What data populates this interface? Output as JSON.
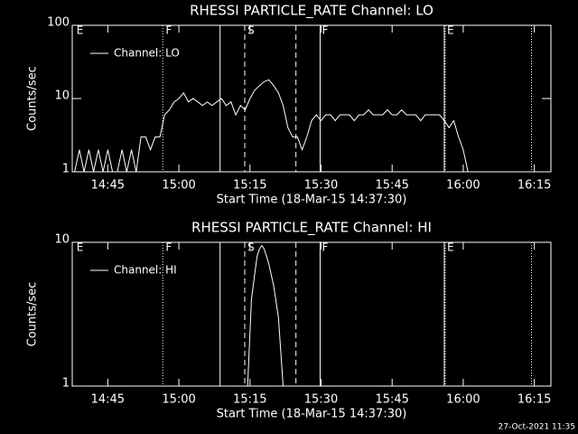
{
  "chart_data": [
    {
      "type": "line",
      "title": "RHESSI PARTICLE_RATE Channel: LO",
      "x_label": "Start Time (18-Mar-15 14:37:30)",
      "y_label": "Counts/sec",
      "log_y": true,
      "legend": "upper left",
      "xlim": [
        877.5,
        978.5
      ],
      "ylim": [
        1,
        100
      ],
      "xticks": [
        {
          "value": 885,
          "label": "14:45"
        },
        {
          "value": 900,
          "label": "15:00"
        },
        {
          "value": 915,
          "label": "15:15"
        },
        {
          "value": 930,
          "label": "15:30"
        },
        {
          "value": 945,
          "label": "15:45"
        },
        {
          "value": 960,
          "label": "16:00"
        },
        {
          "value": 975,
          "label": "16:15"
        }
      ],
      "yticks": [
        1,
        10,
        100
      ],
      "event_lines": [
        {
          "x": 896.6,
          "style": "dotted"
        },
        {
          "x": 908.7,
          "style": "solid"
        },
        {
          "x": 913.9,
          "style": "dashed"
        },
        {
          "x": 924.7,
          "style": "dashed"
        },
        {
          "x": 929.8,
          "style": "solid"
        },
        {
          "x": 956.0,
          "style": "solid"
        },
        {
          "x": 956.2,
          "style": "dotted"
        },
        {
          "x": 974.4,
          "style": "dotted"
        }
      ],
      "annotations": [
        {
          "x": 878.4,
          "label": "E"
        },
        {
          "x": 897.2,
          "label": "F"
        },
        {
          "x": 914.5,
          "label": "S"
        },
        {
          "x": 930.2,
          "label": "F"
        },
        {
          "x": 956.6,
          "label": "E"
        }
      ],
      "x": [
        878,
        879,
        880,
        881,
        882,
        883,
        884,
        885,
        886,
        887,
        888,
        889,
        890,
        891,
        892,
        893,
        894,
        895,
        896,
        897,
        898,
        899,
        900,
        901,
        902,
        903,
        904,
        905,
        906,
        907,
        908,
        909,
        910,
        911,
        912,
        913,
        914,
        915,
        916,
        917,
        918,
        919,
        920,
        921,
        922,
        923,
        924,
        925,
        926,
        927,
        928,
        929,
        930,
        931,
        932,
        933,
        934,
        935,
        936,
        937,
        938,
        939,
        940,
        941,
        942,
        943,
        944,
        945,
        946,
        947,
        948,
        949,
        950,
        951,
        952,
        953,
        954,
        955,
        956,
        957,
        958,
        959,
        960,
        961,
        962,
        963,
        964,
        965,
        966,
        967,
        968,
        969,
        970,
        971,
        972,
        973,
        974,
        975,
        976,
        977,
        978
      ],
      "series": [
        {
          "name": "Channel: LO",
          "color": "#ffffff",
          "values": [
            1,
            2,
            1,
            2,
            1,
            2,
            1,
            2,
            1,
            1,
            2,
            1,
            2,
            1,
            3,
            3,
            2,
            3,
            3,
            6,
            7,
            9,
            10,
            12,
            9,
            10,
            9,
            8,
            9,
            8,
            9,
            10,
            8,
            9,
            6,
            8,
            7,
            10,
            13,
            15,
            17,
            18,
            15,
            12,
            8,
            4,
            3,
            3,
            2,
            3,
            5,
            6,
            5,
            6,
            6,
            5,
            6,
            6,
            6,
            5,
            6,
            6,
            7,
            6,
            6,
            6,
            7,
            6,
            6,
            7,
            6,
            6,
            6,
            5,
            6,
            6,
            6,
            6,
            5,
            4,
            5,
            3,
            2,
            1,
            null,
            null,
            null,
            null,
            null,
            null,
            null,
            null,
            null,
            null,
            null,
            null,
            null,
            null,
            null,
            null,
            null
          ]
        }
      ]
    },
    {
      "type": "line",
      "title": "RHESSI PARTICLE_RATE Channel: HI",
      "x_label": "Start Time (18-Mar-15 14:37:30)",
      "y_label": "Counts/sec",
      "log_y": true,
      "legend": "upper left",
      "xlim": [
        877.5,
        978.5
      ],
      "ylim": [
        1,
        10
      ],
      "xticks": [
        {
          "value": 885,
          "label": "14:45"
        },
        {
          "value": 900,
          "label": "15:00"
        },
        {
          "value": 915,
          "label": "15:15"
        },
        {
          "value": 930,
          "label": "15:30"
        },
        {
          "value": 945,
          "label": "15:45"
        },
        {
          "value": 960,
          "label": "16:00"
        },
        {
          "value": 975,
          "label": "16:15"
        }
      ],
      "yticks": [
        1,
        10
      ],
      "event_lines": [
        {
          "x": 896.6,
          "style": "dotted"
        },
        {
          "x": 908.7,
          "style": "solid"
        },
        {
          "x": 913.9,
          "style": "dashed"
        },
        {
          "x": 924.7,
          "style": "dashed"
        },
        {
          "x": 929.8,
          "style": "solid"
        },
        {
          "x": 956.0,
          "style": "solid"
        },
        {
          "x": 956.2,
          "style": "dotted"
        },
        {
          "x": 974.4,
          "style": "dotted"
        }
      ],
      "annotations": [
        {
          "x": 878.4,
          "label": "E"
        },
        {
          "x": 897.2,
          "label": "F"
        },
        {
          "x": 914.5,
          "label": "S"
        },
        {
          "x": 930.2,
          "label": "F"
        },
        {
          "x": 956.6,
          "label": "E"
        }
      ],
      "x": [
        914.5,
        915.3,
        916,
        916.5,
        917,
        917.5,
        918,
        918.5,
        919,
        920,
        921,
        922
      ],
      "series": [
        {
          "name": "Channel: HI",
          "color": "#ffffff",
          "values": [
            1,
            4,
            6,
            8,
            9,
            9.5,
            9,
            8,
            7,
            5,
            3,
            1
          ]
        }
      ]
    }
  ],
  "footer": "27-Oct-2021 11:35"
}
